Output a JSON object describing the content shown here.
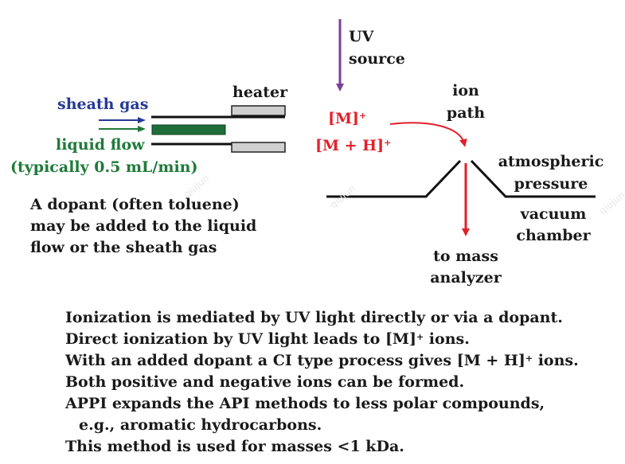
{
  "labels": {
    "uv_line1": "UV",
    "uv_line2": "source",
    "heater": "heater",
    "ion_line1": "ion",
    "ion_line2": "path",
    "sheath_gas": "sheath gas",
    "liquid_flow": "liquid flow",
    "flow_rate": "(typically 0.5 mL/min)",
    "m_ion": "[M]",
    "mh_ion": "[M + H]",
    "plus": "+",
    "atm_line1": "atmospheric",
    "atm_line2": "pressure",
    "vac_line1": "vacuum",
    "vac_line2": "chamber",
    "to_mass_line1": "to mass",
    "to_mass_line2": "analyzer",
    "dopant_line1": "A dopant (often toluene)",
    "dopant_line2": "may be added to the liquid",
    "dopant_line3": "flow or the sheath gas"
  },
  "notes": [
    "Ionization is mediated by UV light directly or via a dopant.",
    "Direct ionization by UV light leads to [M]",
    "ions.",
    "With an added dopant a CI type process gives [M + H]",
    "ions.",
    "Both positive and negative ions can be formed.",
    "APPI expands the API methods to less polar compounds,",
    "e.g., aromatic hydrocarbons.",
    "This method is used for masses <1 kDa."
  ],
  "watermark": "qiujun",
  "colors": {
    "uv_arrow": "#7b3f9c",
    "ion_text": "#e3202a",
    "sheath": "#243a94",
    "liquid": "#1f7a3a",
    "heater_fill": "#cfcfcf"
  }
}
